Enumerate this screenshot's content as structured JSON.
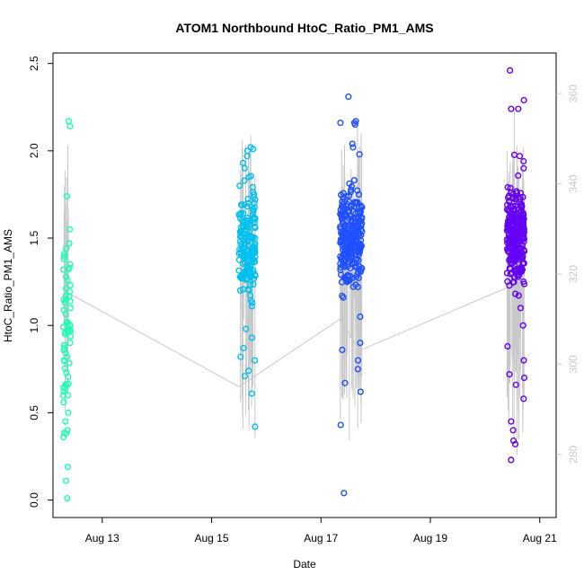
{
  "chart_data": {
    "type": "scatter",
    "title": "ATOM1 Northbound HtoC_Ratio_PM1_AMS",
    "xlabel": "Date",
    "ylabel": "HtoC_Ratio_PM1_AMS",
    "x_ticks": [
      "Aug 13",
      "Aug 15",
      "Aug 17",
      "Aug 19",
      "Aug 21"
    ],
    "x_tick_days": [
      13,
      15,
      17,
      19,
      21
    ],
    "xlim_days": [
      12.1,
      21.3
    ],
    "ylim": [
      -0.1,
      2.56
    ],
    "y_ticks": [
      0.0,
      0.5,
      1.0,
      1.5,
      2.0,
      2.5
    ],
    "y_ticks_labels": [
      "0.0",
      "0.5",
      "1.0",
      "1.5",
      "2.0",
      "2.5"
    ],
    "y2_ticks": [
      "280",
      "300",
      "320",
      "340",
      "360"
    ],
    "y2_tick_values": [
      280,
      300,
      320,
      340,
      360
    ],
    "y2lim": [
      266,
      369
    ],
    "grid": false,
    "legend": "none",
    "secondary_line": {
      "color": "#c8c8c8",
      "x_days": [
        12.35,
        15.5,
        17.35,
        17.7,
        20.6
      ],
      "y2": [
        316,
        295,
        310,
        303,
        318
      ]
    },
    "series": [
      {
        "color": "#1affb0",
        "x_range_days": [
          12.28,
          12.42
        ],
        "count": 70,
        "y_center": 1.0,
        "y_spread": 0.36,
        "y_points": [
          2.17,
          2.14,
          1.74,
          1.55,
          1.47,
          1.44,
          1.41,
          1.38,
          1.35,
          1.33,
          1.32,
          1.32,
          1.23,
          1.17,
          1.13,
          1.1,
          1.0,
          0.98,
          0.97,
          0.97,
          0.96,
          0.96,
          0.95,
          0.9,
          0.86,
          0.82,
          0.8,
          0.73,
          0.66,
          0.64,
          0.6,
          0.56,
          0.5,
          0.45,
          0.4,
          0.38,
          0.36,
          0.19,
          0.11,
          0.01
        ]
      },
      {
        "color": "#00c0f0",
        "x_range_days": [
          15.5,
          15.8
        ],
        "count": 180,
        "y_center": 1.45,
        "y_spread": 0.25,
        "y_points": [
          2.02,
          2.01,
          2.0,
          1.97,
          1.93,
          1.9,
          1.85,
          1.8,
          1.75,
          1.7,
          1.49,
          1.27,
          1.2,
          1.11,
          0.98,
          0.93,
          0.87,
          0.82,
          0.8,
          0.74,
          0.71,
          0.61,
          0.42
        ]
      },
      {
        "color": "#1f50ff",
        "x_range_days": [
          17.35,
          17.75
        ],
        "count": 280,
        "y_center": 1.5,
        "y_spread": 0.22,
        "y_points": [
          2.31,
          2.17,
          2.16,
          2.16,
          2.15,
          2.04,
          2.02,
          1.98,
          1.16,
          1.05,
          0.9,
          0.86,
          0.8,
          0.75,
          0.67,
          0.62,
          0.43,
          0.04
        ]
      },
      {
        "color": "#6400f5",
        "x_range_days": [
          20.4,
          20.72
        ],
        "count": 300,
        "y_center": 1.52,
        "y_spread": 0.22,
        "y_points": [
          2.46,
          2.29,
          2.24,
          2.24,
          1.97,
          1.94,
          1.9,
          1.1,
          1.0,
          0.88,
          0.8,
          0.72,
          0.7,
          0.66,
          0.58,
          0.45,
          0.4,
          0.34,
          0.32,
          0.23
        ]
      }
    ]
  }
}
